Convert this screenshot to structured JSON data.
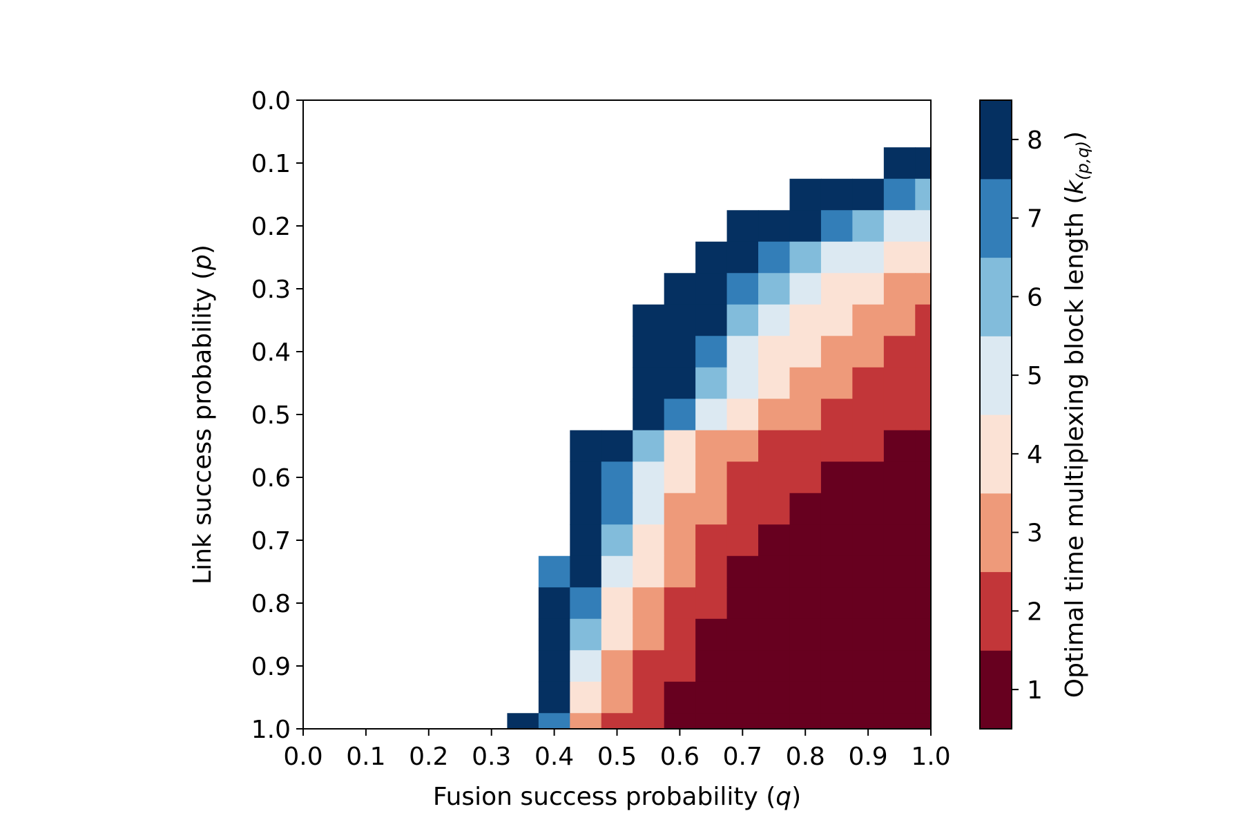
{
  "chart_data": {
    "type": "heatmap",
    "xlabel": {
      "text": "Fusion success probability (",
      "var": "q",
      "suffix": ")"
    },
    "ylabel": {
      "text": "Link success probability (",
      "var": "p",
      "suffix": ")"
    },
    "colorbar_label": {
      "text": "Optimal time multiplexing block length (",
      "var": "k",
      "sub": "(p,q)",
      "suffix": ")"
    },
    "x_ticks": [
      "0.0",
      "0.1",
      "0.2",
      "0.3",
      "0.4",
      "0.5",
      "0.6",
      "0.7",
      "0.8",
      "0.9",
      "1.0"
    ],
    "y_ticks": [
      "0.0",
      "0.1",
      "0.2",
      "0.3",
      "0.4",
      "0.5",
      "0.6",
      "0.7",
      "0.8",
      "0.9",
      "1.0"
    ],
    "x_range": [
      0.0,
      1.0
    ],
    "y_range": [
      0.0,
      1.0
    ],
    "y_inverted": true,
    "cell_size": 0.05,
    "colorbar_ticks": [
      "1",
      "2",
      "3",
      "4",
      "5",
      "6",
      "7",
      "8"
    ],
    "colorbar_range": [
      0.5,
      8.5
    ],
    "colormap": {
      "1": "#67001f",
      "2": "#c23639",
      "3": "#ee9a7a",
      "4": "#fbe2d5",
      "5": "#dce9f2",
      "6": "#82bcdb",
      "7": "#337eb8",
      "8": "#053061"
    },
    "rows_note": "row i covers p from 0.05*i-0.025 to 0.05*i+0.025, column j covers q from 0.05*j-0.025 to 0.05*j+0.025; 0 = no value",
    "values": [
      [
        0,
        0,
        0,
        0,
        0,
        0,
        0,
        0,
        0,
        0,
        0,
        0,
        0,
        0,
        0,
        0,
        0,
        0,
        0,
        0,
        0
      ],
      [
        0,
        0,
        0,
        0,
        0,
        0,
        0,
        0,
        0,
        0,
        0,
        0,
        0,
        0,
        0,
        0,
        0,
        0,
        0,
        0,
        0
      ],
      [
        0,
        0,
        0,
        0,
        0,
        0,
        0,
        0,
        0,
        0,
        0,
        0,
        0,
        0,
        0,
        0,
        0,
        0,
        0,
        8,
        8
      ],
      [
        0,
        0,
        0,
        0,
        0,
        0,
        0,
        0,
        0,
        0,
        0,
        0,
        0,
        0,
        0,
        0,
        8,
        8,
        8,
        7,
        6
      ],
      [
        0,
        0,
        0,
        0,
        0,
        0,
        0,
        0,
        0,
        0,
        0,
        0,
        0,
        0,
        8,
        8,
        8,
        7,
        6,
        5,
        5
      ],
      [
        0,
        0,
        0,
        0,
        0,
        0,
        0,
        0,
        0,
        0,
        0,
        0,
        0,
        8,
        8,
        7,
        6,
        5,
        5,
        4,
        4
      ],
      [
        0,
        0,
        0,
        0,
        0,
        0,
        0,
        0,
        0,
        0,
        0,
        0,
        8,
        8,
        7,
        6,
        5,
        4,
        4,
        3,
        3
      ],
      [
        0,
        0,
        0,
        0,
        0,
        0,
        0,
        0,
        0,
        0,
        0,
        8,
        8,
        8,
        6,
        5,
        4,
        4,
        3,
        3,
        2
      ],
      [
        0,
        0,
        0,
        0,
        0,
        0,
        0,
        0,
        0,
        0,
        0,
        8,
        8,
        7,
        5,
        4,
        4,
        3,
        3,
        2,
        2
      ],
      [
        0,
        0,
        0,
        0,
        0,
        0,
        0,
        0,
        0,
        0,
        0,
        8,
        8,
        6,
        5,
        4,
        3,
        3,
        2,
        2,
        2
      ],
      [
        0,
        0,
        0,
        0,
        0,
        0,
        0,
        0,
        0,
        0,
        0,
        8,
        7,
        5,
        4,
        3,
        3,
        2,
        2,
        2,
        2
      ],
      [
        0,
        0,
        0,
        0,
        0,
        0,
        0,
        0,
        0,
        8,
        8,
        6,
        4,
        3,
        3,
        2,
        2,
        2,
        2,
        1,
        1
      ],
      [
        0,
        0,
        0,
        0,
        0,
        0,
        0,
        0,
        0,
        8,
        7,
        5,
        4,
        3,
        2,
        2,
        2,
        1,
        1,
        1,
        1
      ],
      [
        0,
        0,
        0,
        0,
        0,
        0,
        0,
        0,
        0,
        8,
        7,
        5,
        3,
        3,
        2,
        2,
        1,
        1,
        1,
        1,
        1
      ],
      [
        0,
        0,
        0,
        0,
        0,
        0,
        0,
        0,
        0,
        8,
        6,
        4,
        3,
        2,
        2,
        1,
        1,
        1,
        1,
        1,
        1
      ],
      [
        0,
        0,
        0,
        0,
        0,
        0,
        0,
        0,
        7,
        8,
        5,
        4,
        3,
        2,
        1,
        1,
        1,
        1,
        1,
        1,
        1
      ],
      [
        0,
        0,
        0,
        0,
        0,
        0,
        0,
        0,
        8,
        7,
        4,
        3,
        2,
        2,
        1,
        1,
        1,
        1,
        1,
        1,
        1
      ],
      [
        0,
        0,
        0,
        0,
        0,
        0,
        0,
        0,
        8,
        6,
        4,
        3,
        2,
        1,
        1,
        1,
        1,
        1,
        1,
        1,
        1
      ],
      [
        0,
        0,
        0,
        0,
        0,
        0,
        0,
        0,
        8,
        5,
        3,
        2,
        2,
        1,
        1,
        1,
        1,
        1,
        1,
        1,
        1
      ],
      [
        0,
        0,
        0,
        0,
        0,
        0,
        0,
        0,
        8,
        4,
        3,
        2,
        1,
        1,
        1,
        1,
        1,
        1,
        1,
        1,
        1
      ],
      [
        0,
        0,
        0,
        0,
        0,
        0,
        0,
        8,
        7,
        3,
        2,
        2,
        1,
        1,
        1,
        1,
        1,
        1,
        1,
        1,
        1
      ]
    ]
  }
}
